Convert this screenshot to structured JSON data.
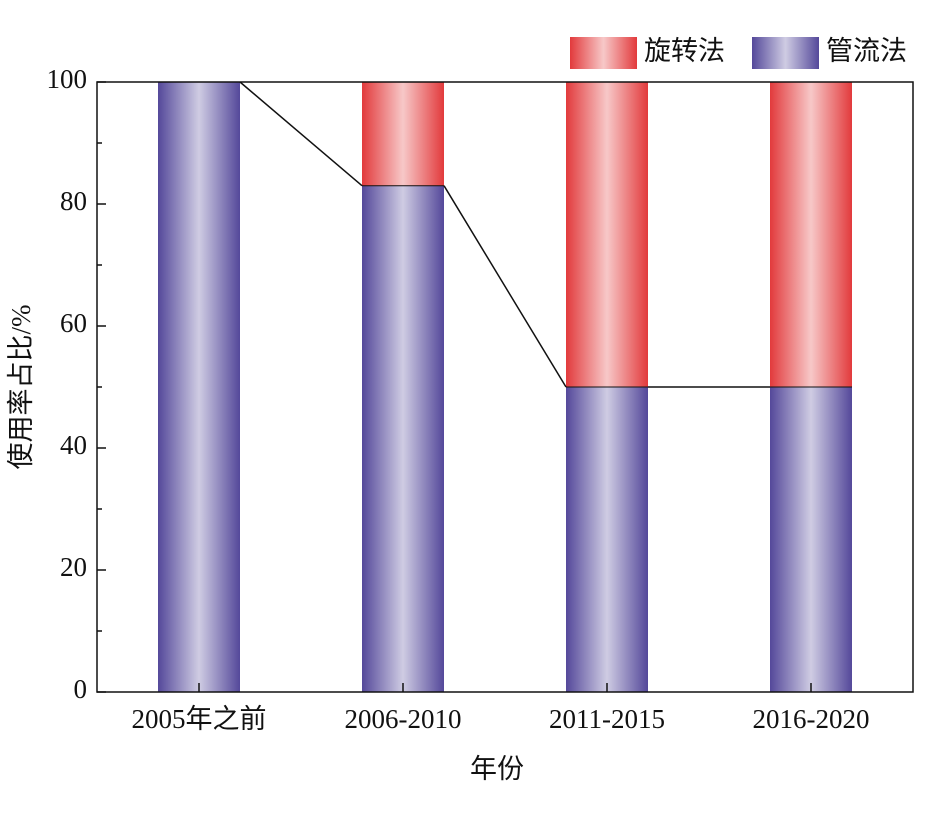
{
  "chart_data": {
    "type": "stacked_bar",
    "x_label": "年份",
    "y_label": "使用率占比/%",
    "categories": [
      "2005年之前",
      "2006-2010",
      "2011-2015",
      "2016-2020"
    ],
    "series": [
      {
        "name": "管流法",
        "color": "#54489a",
        "values": [
          100,
          83,
          50,
          50
        ]
      },
      {
        "name": "旋转法",
        "color": "#e23a3c",
        "values": [
          0,
          17,
          50,
          50
        ]
      }
    ],
    "ylim": [
      0,
      100
    ],
    "yticks": [
      0,
      20,
      40,
      60,
      80,
      100
    ],
    "trend_line_series": 0
  }
}
